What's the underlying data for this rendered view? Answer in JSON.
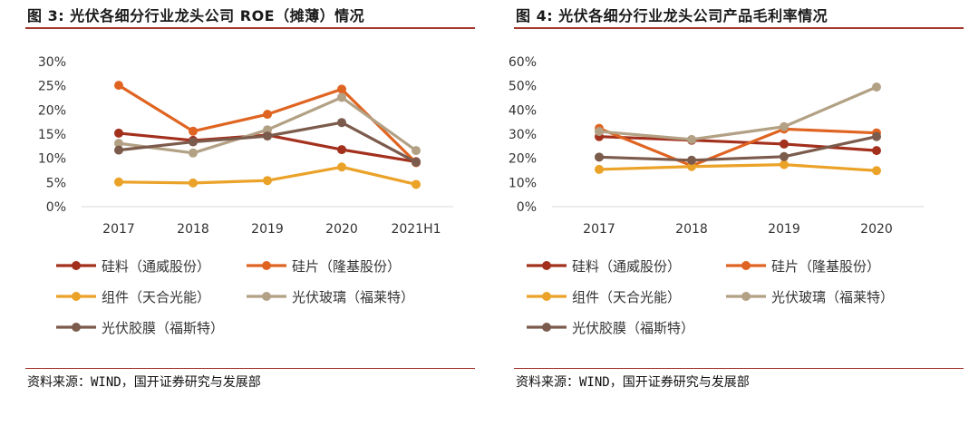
{
  "left": {
    "title": "图 3: 光伏各细分行业龙头公司 ROE（摊薄）情况",
    "source": "资料来源：WIND，国开证券研究与发展部"
  },
  "right": {
    "title": "图 4: 光伏各细分行业龙头公司产品毛利率情况",
    "source": "资料来源：WIND，国开证券研究与发展部"
  },
  "chart_data": [
    {
      "type": "line",
      "title": "光伏各细分行业龙头公司 ROE（摊薄）情况",
      "categories": [
        "2017",
        "2018",
        "2019",
        "2020",
        "2021H1"
      ],
      "y_tick_labels": [
        "0%",
        "5%",
        "10%",
        "15%",
        "20%",
        "25%",
        "30%"
      ],
      "ylim": [
        0,
        30
      ],
      "grid": false,
      "legend_position": "bottom",
      "series": [
        {
          "name": "硅料（通威股份）",
          "color": "#a3301d",
          "values": [
            15.2,
            13.7,
            14.8,
            11.8,
            9.3
          ]
        },
        {
          "name": "硅片（隆基股份）",
          "color": "#e06421",
          "values": [
            25.1,
            15.6,
            19.1,
            24.3,
            9.1
          ]
        },
        {
          "name": "组件（天合光能）",
          "color": "#eba228",
          "values": [
            5.1,
            4.9,
            5.4,
            8.2,
            4.6
          ]
        },
        {
          "name": "光伏玻璃（福莱特）",
          "color": "#b2a184",
          "values": [
            13.1,
            11.1,
            15.9,
            22.6,
            11.6
          ]
        },
        {
          "name": "光伏胶膜（福斯特）",
          "color": "#7b5b4c",
          "values": [
            11.7,
            13.4,
            14.6,
            17.4,
            9.2
          ]
        }
      ]
    },
    {
      "type": "line",
      "title": "光伏各细分行业龙头公司产品毛利率情况",
      "categories": [
        "2017",
        "2018",
        "2019",
        "2020"
      ],
      "y_tick_labels": [
        "0%",
        "10%",
        "20%",
        "30%",
        "40%",
        "50%",
        "60%"
      ],
      "ylim": [
        0,
        60
      ],
      "grid": false,
      "legend_position": "bottom",
      "series": [
        {
          "name": "硅料（通威股份）",
          "color": "#a3301d",
          "values": [
            29.0,
            27.5,
            25.9,
            23.2
          ]
        },
        {
          "name": "硅片（隆基股份）",
          "color": "#e06421",
          "values": [
            32.4,
            16.9,
            32.1,
            30.5
          ]
        },
        {
          "name": "组件（天合光能）",
          "color": "#eba228",
          "values": [
            15.4,
            16.6,
            17.4,
            14.9
          ]
        },
        {
          "name": "光伏玻璃（福莱特）",
          "color": "#b2a184",
          "values": [
            31.1,
            27.8,
            33.1,
            49.5
          ]
        },
        {
          "name": "光伏胶膜（福斯特）",
          "color": "#7b5b4c",
          "values": [
            20.5,
            19.2,
            20.7,
            29.0
          ]
        }
      ]
    }
  ]
}
